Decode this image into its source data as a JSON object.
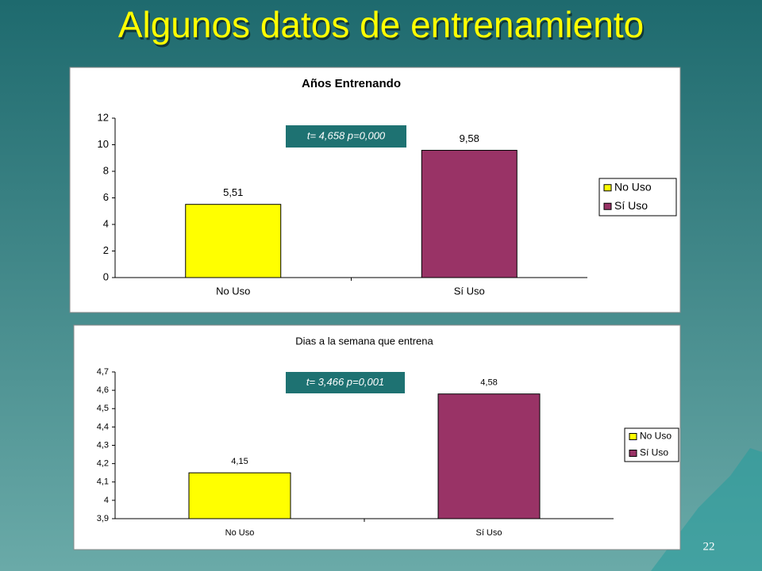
{
  "slide_title": "Algunos datos de entrenamiento",
  "page_number": "22",
  "chart_data": [
    {
      "type": "bar",
      "title": "Años Entrenando",
      "categories": [
        "No Uso",
        "Sí Uso"
      ],
      "values": [
        5.51,
        9.58
      ],
      "value_labels": [
        "5,51",
        "9,58"
      ],
      "colors": [
        "#ffff00",
        "#993366"
      ],
      "ylim": [
        0,
        12
      ],
      "yticks": [
        0,
        2,
        4,
        6,
        8,
        10,
        12
      ],
      "grid": false,
      "legend": "right",
      "annotation": "t= 4,658 p=0,000"
    },
    {
      "type": "bar",
      "title": "Dias a la semana que entrena",
      "categories": [
        "No Uso",
        "Sí Uso"
      ],
      "values": [
        4.15,
        4.58
      ],
      "value_labels": [
        "4,15",
        "4,58"
      ],
      "colors": [
        "#ffff00",
        "#993366"
      ],
      "ylim": [
        3.9,
        4.7
      ],
      "yticks": [
        {
          "value": 3.9,
          "label": "3,9"
        },
        4,
        {
          "value": 4.1,
          "label": "4,1"
        },
        {
          "value": 4.2,
          "label": "4,2"
        },
        {
          "value": 4.3,
          "label": "4,3"
        },
        {
          "value": 4.4,
          "label": "4,4"
        },
        {
          "value": 4.5,
          "label": "4,5"
        },
        {
          "value": 4.6,
          "label": "4,6"
        },
        {
          "value": 4.7,
          "label": "4,7"
        }
      ],
      "grid": false,
      "legend": "right",
      "annotation": "t= 3,466 p=0,001"
    }
  ]
}
